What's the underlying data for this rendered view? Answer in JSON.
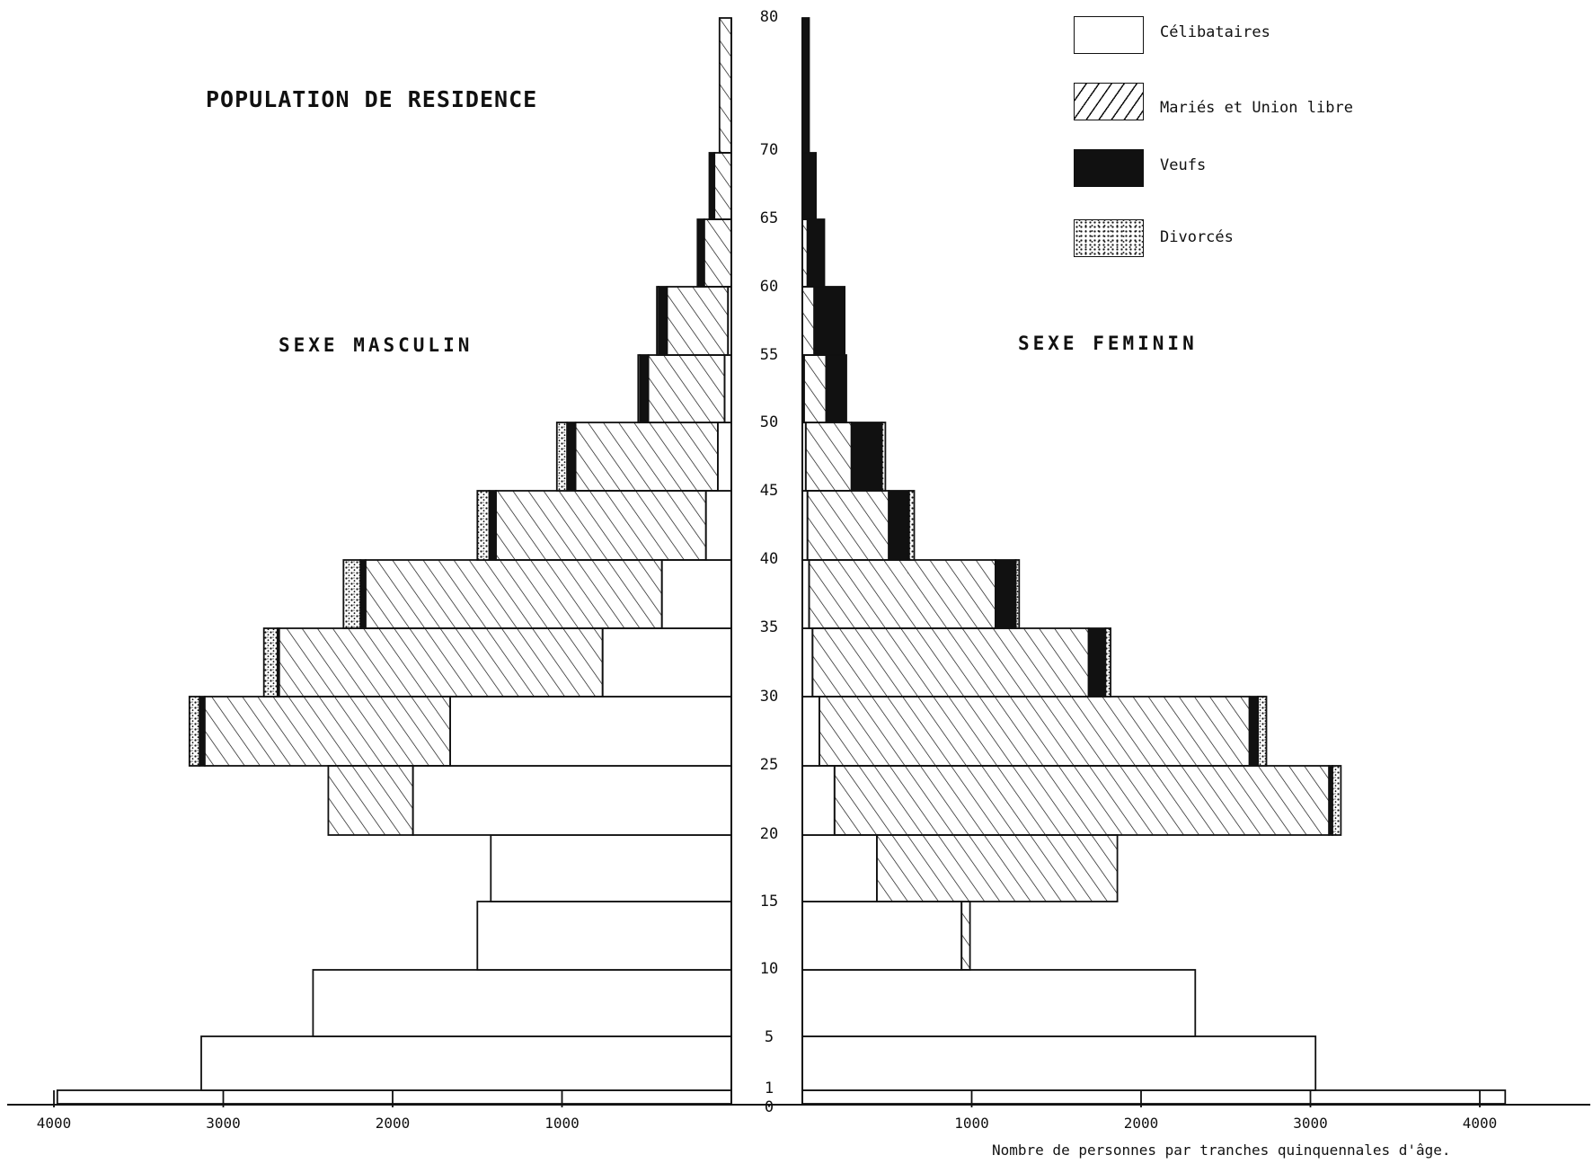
{
  "title": "POPULATION DE RESIDENCE",
  "labels": {
    "male": "SEXE MASCULIN",
    "female": "SEXE FEMININ",
    "x_caption": "Nombre de personnes par tranches quinquennales d'âge."
  },
  "legend": [
    {
      "key": "celibataires",
      "label": "Célibataires",
      "pattern": "plain"
    },
    {
      "key": "maries",
      "label": "Mariés et Union libre",
      "pattern": "hatch"
    },
    {
      "key": "veufs",
      "label": "Veufs",
      "pattern": "solid"
    },
    {
      "key": "divorces",
      "label": "Divorcés",
      "pattern": "dots"
    }
  ],
  "colors": {
    "ink": "#111111",
    "background": "#ffffff"
  },
  "chart_data": {
    "type": "bar",
    "orientation": "horizontal-population-pyramid",
    "stacking": "stacked",
    "categories": [
      "0-1",
      "1-5",
      "5-10",
      "10-15",
      "15-20",
      "20-25",
      "25-30",
      "30-35",
      "35-40",
      "40-45",
      "45-50",
      "50-55",
      "55-60",
      "60-65",
      "65-70",
      "70-80"
    ],
    "y_tick_labels": [
      "0",
      "1",
      "5",
      "10",
      "15",
      "20",
      "25",
      "30",
      "35",
      "40",
      "45",
      "50",
      "55",
      "60",
      "65",
      "70",
      "80"
    ],
    "x_tick_labels": [
      "1000",
      "2000",
      "3000",
      "4000"
    ],
    "xlim": [
      0,
      4000
    ],
    "ylim": [
      0,
      80
    ],
    "grid": false,
    "legend_position": "top-right",
    "male": {
      "series": [
        {
          "name": "Célibataires",
          "values": [
            3980,
            3130,
            2470,
            1500,
            1420,
            1880,
            1660,
            760,
            410,
            150,
            80,
            40,
            20,
            0,
            0,
            0
          ]
        },
        {
          "name": "Mariés et Union libre",
          "values": [
            0,
            0,
            0,
            0,
            0,
            500,
            1450,
            1910,
            1750,
            1240,
            840,
            450,
            360,
            160,
            100,
            70
          ]
        },
        {
          "name": "Veufs",
          "values": [
            0,
            0,
            0,
            0,
            0,
            0,
            30,
            10,
            30,
            40,
            50,
            50,
            50,
            40,
            30,
            0
          ]
        },
        {
          "name": "Divorcés",
          "values": [
            0,
            0,
            0,
            0,
            0,
            0,
            60,
            80,
            100,
            70,
            60,
            10,
            10,
            0,
            0,
            0
          ]
        }
      ]
    },
    "female": {
      "series": [
        {
          "name": "Célibataires",
          "values": [
            4150,
            3030,
            2320,
            940,
            440,
            190,
            100,
            60,
            40,
            30,
            20,
            10,
            0,
            0,
            0,
            0
          ]
        },
        {
          "name": "Mariés et Union libre",
          "values": [
            0,
            0,
            0,
            50,
            1420,
            2920,
            2540,
            1630,
            1100,
            480,
            270,
            130,
            70,
            30,
            10,
            0
          ]
        },
        {
          "name": "Veufs",
          "values": [
            0,
            0,
            0,
            0,
            0,
            20,
            50,
            100,
            120,
            120,
            180,
            120,
            180,
            100,
            70,
            40
          ]
        },
        {
          "name": "Divorcés",
          "values": [
            0,
            0,
            0,
            0,
            0,
            50,
            50,
            30,
            20,
            30,
            20,
            0,
            0,
            0,
            0,
            0
          ]
        }
      ]
    }
  }
}
